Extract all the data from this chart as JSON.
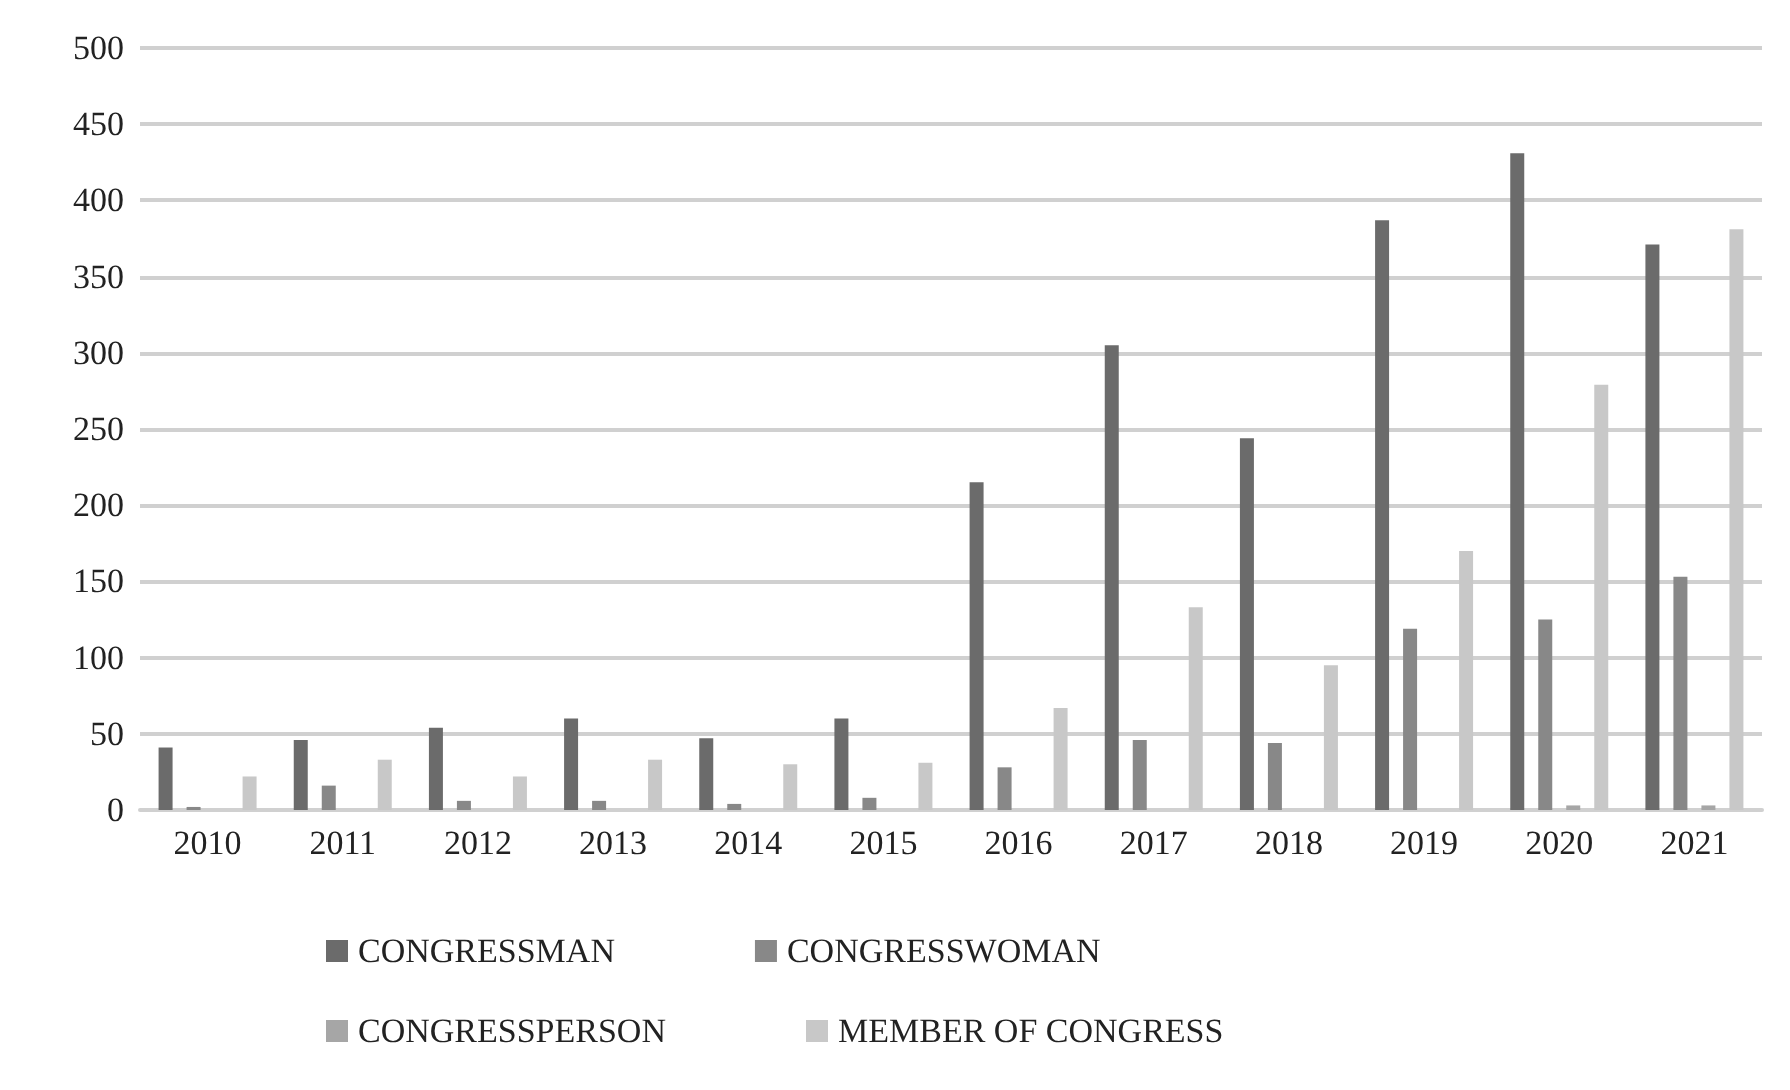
{
  "chart_data": {
    "type": "bar",
    "categories": [
      "2010",
      "2011",
      "2012",
      "2013",
      "2014",
      "2015",
      "2016",
      "2017",
      "2018",
      "2019",
      "2020",
      "2021"
    ],
    "series": [
      {
        "name": "CONGRESSMAN",
        "color": "#6b6b6b",
        "values": [
          41,
          46,
          54,
          60,
          47,
          60,
          215,
          305,
          244,
          387,
          431,
          371
        ]
      },
      {
        "name": "CONGRESSWOMAN",
        "color": "#888888",
        "values": [
          2,
          16,
          6,
          6,
          4,
          8,
          28,
          46,
          44,
          119,
          125,
          153
        ]
      },
      {
        "name": "CONGRESSPERSON",
        "color": "#a6a6a6",
        "values": [
          0,
          0,
          0,
          0,
          0,
          0,
          0,
          0,
          0,
          0,
          3,
          3
        ]
      },
      {
        "name": "MEMBER OF CONGRESS",
        "color": "#c8c8c8",
        "values": [
          22,
          33,
          22,
          33,
          30,
          31,
          67,
          133,
          95,
          170,
          279,
          381
        ]
      }
    ],
    "ylim": [
      0,
      500
    ],
    "yticks": [
      0,
      50,
      100,
      150,
      200,
      250,
      300,
      350,
      400,
      450,
      500
    ],
    "grid": "y",
    "legend": "bottom"
  }
}
